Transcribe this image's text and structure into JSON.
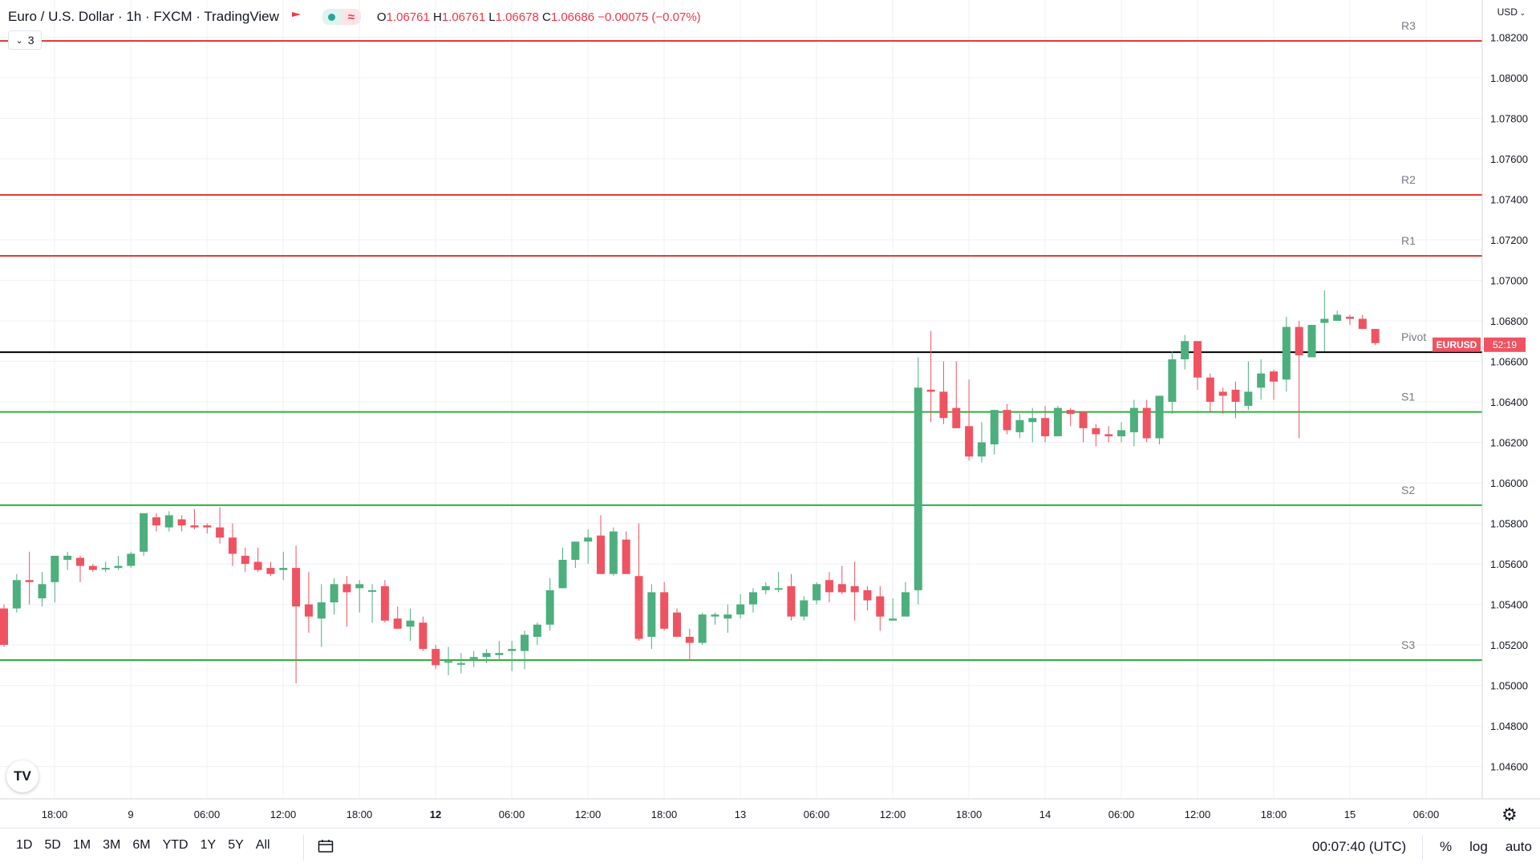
{
  "header": {
    "symbol_title": "Euro / U.S. Dollar · 1h · FXCM · TradingView",
    "ohlc": {
      "o_label": "O",
      "o": "1.06761",
      "h_label": "H",
      "h": "1.06761",
      "l_label": "L",
      "l": "1.06678",
      "c_label": "C",
      "c": "1.06686",
      "change": "−0.00075 (−0.07%)"
    },
    "collapse_count": "3",
    "currency": "USD"
  },
  "bottom_bar": {
    "ranges": [
      "1D",
      "5D",
      "1M",
      "3M",
      "6M",
      "YTD",
      "1Y",
      "5Y",
      "All"
    ],
    "clock": "00:07:40 (UTC)",
    "percent_label": "%",
    "log_label": "log",
    "auto_label": "auto"
  },
  "logo_text": "TV",
  "colors": {
    "up": "#4caf7d",
    "down": "#ef5361",
    "resistance": "#e53935",
    "support": "#2eaf3f",
    "pivot": "#000000",
    "price_tag": "#ef5361",
    "grid": "#eef0f4",
    "axis_text": "#131722",
    "level_text": "#787b86"
  },
  "chart_data": {
    "type": "candlestick",
    "title": "Euro / U.S. Dollar · 1h · FXCM · TradingView",
    "ylim": [
      1.0444,
      1.08384
    ],
    "y_ticks": [
      "1.08200",
      "1.08000",
      "1.07800",
      "1.07600",
      "1.07400",
      "1.07200",
      "1.07000",
      "1.06800",
      "1.06600",
      "1.06400",
      "1.06200",
      "1.06000",
      "1.05800",
      "1.05600",
      "1.05400",
      "1.05200",
      "1.05000",
      "1.04800",
      "1.04600"
    ],
    "x_ticks": [
      "18:00",
      "9",
      "06:00",
      "12:00",
      "18:00",
      "12",
      "06:00",
      "12:00",
      "18:00",
      "13",
      "06:00",
      "12:00",
      "18:00",
      "14",
      "06:00",
      "12:00",
      "18:00",
      "15",
      "06:00"
    ],
    "x_tick_bold": [
      "12"
    ],
    "levels": [
      {
        "name": "R3",
        "value": 1.08182,
        "kind": "resistance"
      },
      {
        "name": "R2",
        "value": 1.07422,
        "kind": "resistance"
      },
      {
        "name": "R1",
        "value": 1.07121,
        "kind": "resistance"
      },
      {
        "name": "Pivot",
        "value": 1.06645,
        "kind": "pivot"
      },
      {
        "name": "S1",
        "value": 1.0635,
        "kind": "support"
      },
      {
        "name": "S2",
        "value": 1.0589,
        "kind": "support"
      },
      {
        "name": "S3",
        "value": 1.05125,
        "kind": "support"
      }
    ],
    "price_tag": {
      "symbol": "EURUSD",
      "countdown": "52:19",
      "value": 1.06686
    },
    "candles": [
      [
        1.0538,
        1.054,
        1.0519,
        1.052
      ],
      [
        1.0538,
        1.0555,
        1.0536,
        1.0552
      ],
      [
        1.0552,
        1.0566,
        1.054,
        1.0551
      ],
      [
        1.0543,
        1.0556,
        1.0539,
        1.055
      ],
      [
        1.0551,
        1.0564,
        1.0541,
        1.0564
      ],
      [
        1.0562,
        1.0566,
        1.0557,
        1.0564
      ],
      [
        1.0563,
        1.0564,
        1.0551,
        1.0559
      ],
      [
        1.0559,
        1.056,
        1.0556,
        1.0557
      ],
      [
        1.0558,
        1.0561,
        1.0556,
        1.0558
      ],
      [
        1.0558,
        1.0564,
        1.0557,
        1.0559
      ],
      [
        1.0559,
        1.0566,
        1.0558,
        1.0565
      ],
      [
        1.0566,
        1.0585,
        1.0564,
        1.0585
      ],
      [
        1.0583,
        1.0585,
        1.0576,
        1.0579
      ],
      [
        1.0578,
        1.0586,
        1.0576,
        1.0584
      ],
      [
        1.0582,
        1.0584,
        1.0576,
        1.0579
      ],
      [
        1.0579,
        1.0587,
        1.0577,
        1.0578
      ],
      [
        1.0579,
        1.058,
        1.0575,
        1.0578
      ],
      [
        1.0578,
        1.0588,
        1.057,
        1.0573
      ],
      [
        1.0573,
        1.058,
        1.0559,
        1.0565
      ],
      [
        1.0564,
        1.0568,
        1.0556,
        1.056
      ],
      [
        1.0561,
        1.0568,
        1.0556,
        1.0557
      ],
      [
        1.0558,
        1.0561,
        1.0554,
        1.0555
      ],
      [
        1.0557,
        1.0566,
        1.0552,
        1.0558
      ],
      [
        1.0558,
        1.0569,
        1.0501,
        1.0539
      ],
      [
        1.054,
        1.0556,
        1.0526,
        1.0534
      ],
      [
        1.0533,
        1.055,
        1.0519,
        1.0541
      ],
      [
        1.0541,
        1.0553,
        1.0535,
        1.055
      ],
      [
        1.055,
        1.0554,
        1.0529,
        1.0546
      ],
      [
        1.0548,
        1.0552,
        1.0536,
        1.055
      ],
      [
        1.0547,
        1.055,
        1.0531,
        1.0547
      ],
      [
        1.0549,
        1.0552,
        1.0531,
        1.0532
      ],
      [
        1.0533,
        1.0539,
        1.0528,
        1.0528
      ],
      [
        1.0529,
        1.0538,
        1.0522,
        1.0532
      ],
      [
        1.0531,
        1.0534,
        1.0517,
        1.0518
      ],
      [
        1.0518,
        1.052,
        1.0508,
        1.051
      ],
      [
        1.0512,
        1.0519,
        1.0505,
        1.0512
      ],
      [
        1.0511,
        1.0516,
        1.0506,
        1.0511
      ],
      [
        1.0513,
        1.0517,
        1.0509,
        1.0514
      ],
      [
        1.0514,
        1.0518,
        1.0511,
        1.0516
      ],
      [
        1.0515,
        1.0522,
        1.0512,
        1.0516
      ],
      [
        1.0517,
        1.0522,
        1.0507,
        1.0518
      ],
      [
        1.0517,
        1.0527,
        1.0508,
        1.0525
      ],
      [
        1.0524,
        1.0531,
        1.052,
        1.053
      ],
      [
        1.053,
        1.0553,
        1.0527,
        1.0547
      ],
      [
        1.0548,
        1.0568,
        1.0548,
        1.0562
      ],
      [
        1.0562,
        1.057,
        1.0558,
        1.0571
      ],
      [
        1.0571,
        1.0577,
        1.056,
        1.0573
      ],
      [
        1.0574,
        1.0584,
        1.0555,
        1.0555
      ],
      [
        1.0555,
        1.0578,
        1.0554,
        1.0576
      ],
      [
        1.0572,
        1.0576,
        1.0555,
        1.0555
      ],
      [
        1.0554,
        1.058,
        1.0522,
        1.0523
      ],
      [
        1.0524,
        1.055,
        1.0518,
        1.0546
      ],
      [
        1.0546,
        1.0551,
        1.0527,
        1.0528
      ],
      [
        1.0536,
        1.0538,
        1.0524,
        1.0524
      ],
      [
        1.0524,
        1.0528,
        1.0512,
        1.0521
      ],
      [
        1.0521,
        1.0536,
        1.052,
        1.0535
      ],
      [
        1.0534,
        1.0536,
        1.053,
        1.0535
      ],
      [
        1.0533,
        1.054,
        1.0526,
        1.0535
      ],
      [
        1.0535,
        1.0545,
        1.0533,
        1.054
      ],
      [
        1.054,
        1.0548,
        1.0536,
        1.0546
      ],
      [
        1.0547,
        1.0551,
        1.0545,
        1.0549
      ],
      [
        1.0548,
        1.0556,
        1.0546,
        1.0548
      ],
      [
        1.0549,
        1.0555,
        1.0532,
        1.0534
      ],
      [
        1.0534,
        1.0544,
        1.0532,
        1.0542
      ],
      [
        1.0542,
        1.0551,
        1.054,
        1.055
      ],
      [
        1.0552,
        1.0556,
        1.0541,
        1.0546
      ],
      [
        1.055,
        1.0559,
        1.0545,
        1.0546
      ],
      [
        1.0549,
        1.0561,
        1.0532,
        1.0546
      ],
      [
        1.0547,
        1.0549,
        1.0537,
        1.0542
      ],
      [
        1.0544,
        1.0549,
        1.0527,
        1.0534
      ],
      [
        1.0532,
        1.0543,
        1.0533,
        1.0533
      ],
      [
        1.0534,
        1.0551,
        1.0535,
        1.0546
      ],
      [
        1.0547,
        1.0662,
        1.054,
        1.0647
      ],
      [
        1.0646,
        1.0675,
        1.063,
        1.0645
      ],
      [
        1.0645,
        1.066,
        1.0629,
        1.0632
      ],
      [
        1.0637,
        1.066,
        1.0627,
        1.0627
      ],
      [
        1.0628,
        1.0651,
        1.0611,
        1.0613
      ],
      [
        1.0613,
        1.063,
        1.061,
        1.062
      ],
      [
        1.0619,
        1.0636,
        1.0614,
        1.0636
      ],
      [
        1.0636,
        1.0639,
        1.0624,
        1.0626
      ],
      [
        1.0625,
        1.0634,
        1.0622,
        1.0631
      ],
      [
        1.063,
        1.0637,
        1.062,
        1.0632
      ],
      [
        1.0632,
        1.0638,
        1.062,
        1.0623
      ],
      [
        1.0623,
        1.0638,
        1.0623,
        1.0637
      ],
      [
        1.0636,
        1.0637,
        1.0628,
        1.0634
      ],
      [
        1.0635,
        1.0635,
        1.062,
        1.0627
      ],
      [
        1.0627,
        1.0629,
        1.0618,
        1.0624
      ],
      [
        1.0624,
        1.0628,
        1.062,
        1.0623
      ],
      [
        1.0623,
        1.063,
        1.062,
        1.0626
      ],
      [
        1.0625,
        1.0641,
        1.0618,
        1.0637
      ],
      [
        1.0637,
        1.0641,
        1.062,
        1.0622
      ],
      [
        1.0622,
        1.0643,
        1.0619,
        1.0643
      ],
      [
        1.064,
        1.0665,
        1.0634,
        1.0661
      ],
      [
        1.0661,
        1.0673,
        1.0656,
        1.067
      ],
      [
        1.067,
        1.067,
        1.0646,
        1.0652
      ],
      [
        1.0652,
        1.0654,
        1.0635,
        1.064
      ],
      [
        1.0645,
        1.0647,
        1.0634,
        1.0643
      ],
      [
        1.0646,
        1.065,
        1.0632,
        1.064
      ],
      [
        1.0638,
        1.066,
        1.0636,
        1.0645
      ],
      [
        1.0647,
        1.0661,
        1.0641,
        1.0654
      ],
      [
        1.0655,
        1.0656,
        1.0641,
        1.065
      ],
      [
        1.0651,
        1.0682,
        1.0645,
        1.0677
      ],
      [
        1.0677,
        1.068,
        1.0622,
        1.0663
      ],
      [
        1.0662,
        1.0678,
        1.0662,
        1.0678
      ],
      [
        1.0679,
        1.0695,
        1.0665,
        1.0681
      ],
      [
        1.068,
        1.0685,
        1.068,
        1.0683
      ],
      [
        1.0682,
        1.0683,
        1.0678,
        1.0681
      ],
      [
        1.0681,
        1.0683,
        1.0676,
        1.0676
      ],
      [
        1.0676,
        1.0676,
        1.0668,
        1.0669
      ]
    ]
  }
}
